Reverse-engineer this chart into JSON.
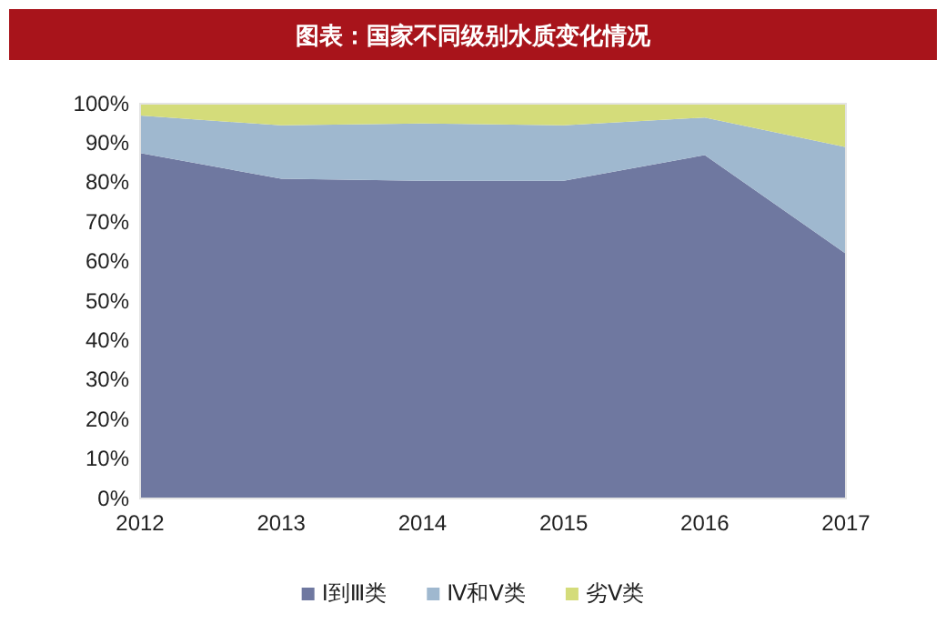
{
  "chart_data": {
    "type": "area",
    "title": "图表：国家不同级别水质变化情况",
    "stacked": true,
    "legend": "bottom",
    "grid": false,
    "categories": [
      "2012",
      "2013",
      "2014",
      "2015",
      "2016",
      "2017"
    ],
    "ylim": [
      0,
      100
    ],
    "yticks": [
      {
        "value": 0,
        "label": "0%"
      },
      {
        "value": 10,
        "label": "10%"
      },
      {
        "value": 20,
        "label": "20%"
      },
      {
        "value": 30,
        "label": "30%"
      },
      {
        "value": 40,
        "label": "40%"
      },
      {
        "value": 50,
        "label": "50%"
      },
      {
        "value": 60,
        "label": "60%"
      },
      {
        "value": 70,
        "label": "70%"
      },
      {
        "value": 80,
        "label": "80%"
      },
      {
        "value": 90,
        "label": "90%"
      },
      {
        "value": 100,
        "label": "100%"
      }
    ],
    "series": [
      {
        "name": "Ⅰ到Ⅲ类",
        "color": "#6f78a0",
        "values": [
          87.5,
          81,
          80.5,
          80.5,
          87,
          62
        ]
      },
      {
        "name": "Ⅳ和Ⅴ类",
        "color": "#9fb8cf",
        "values": [
          9.5,
          13.5,
          14.5,
          14,
          9.5,
          27
        ]
      },
      {
        "name": "劣Ⅴ类",
        "color": "#d4dc7a",
        "values": [
          3,
          5.5,
          5,
          5.5,
          3.5,
          11
        ]
      }
    ]
  }
}
